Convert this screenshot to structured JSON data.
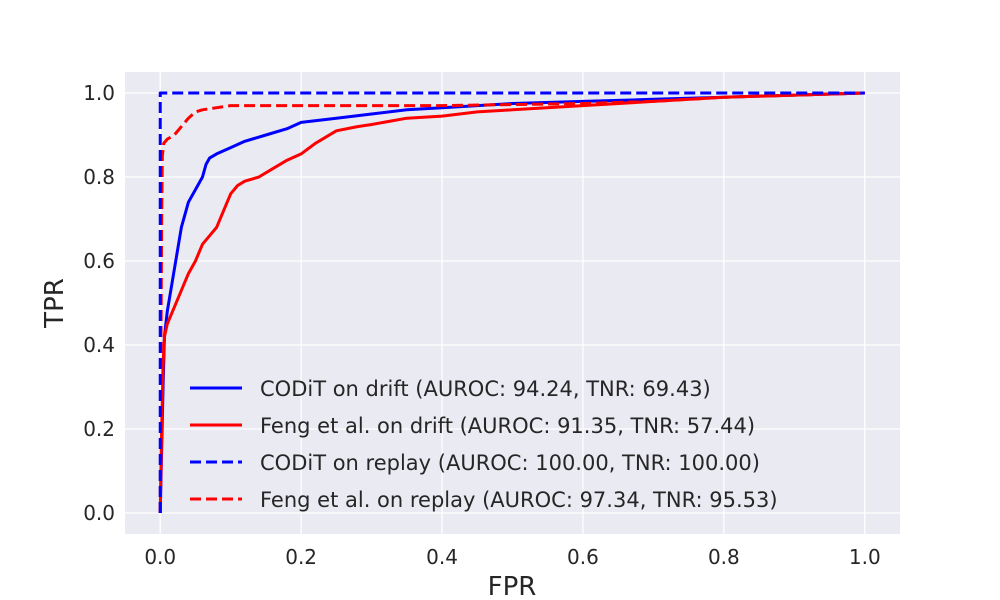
{
  "chart_data": {
    "type": "line",
    "title": "",
    "xlabel": "FPR",
    "ylabel": "TPR",
    "xlim": [
      -0.05,
      1.05
    ],
    "ylim": [
      -0.05,
      1.05
    ],
    "xticks": [
      0.0,
      0.2,
      0.4,
      0.6,
      0.8,
      1.0
    ],
    "yticks": [
      0.0,
      0.2,
      0.4,
      0.6,
      0.8,
      1.0
    ],
    "xtick_labels": [
      "0.0",
      "0.2",
      "0.4",
      "0.6",
      "0.8",
      "1.0"
    ],
    "ytick_labels": [
      "0.0",
      "0.2",
      "0.4",
      "0.6",
      "0.8",
      "1.0"
    ],
    "grid": true,
    "background": "#EAEAF2",
    "legend_position": "lower-right",
    "series": [
      {
        "name": "CODiT on drift (AUROC: 94.24, TNR: 69.43)",
        "color": "#0000FF",
        "style": "solid",
        "x": [
          0.0,
          0.002,
          0.004,
          0.006,
          0.01,
          0.015,
          0.02,
          0.03,
          0.04,
          0.05,
          0.06,
          0.065,
          0.07,
          0.08,
          0.1,
          0.12,
          0.15,
          0.18,
          0.2,
          0.25,
          0.3,
          0.35,
          0.4,
          0.5,
          0.6,
          0.7,
          0.8,
          0.9,
          1.0
        ],
        "y": [
          0.0,
          0.15,
          0.3,
          0.42,
          0.48,
          0.53,
          0.58,
          0.68,
          0.74,
          0.77,
          0.8,
          0.83,
          0.845,
          0.855,
          0.87,
          0.885,
          0.9,
          0.915,
          0.93,
          0.94,
          0.95,
          0.96,
          0.965,
          0.975,
          0.98,
          0.985,
          0.99,
          0.995,
          1.0
        ]
      },
      {
        "name": "Feng et al. on drift (AUROC: 91.35, TNR: 57.44)",
        "color": "#FF0000",
        "style": "solid",
        "x": [
          0.0,
          0.002,
          0.004,
          0.006,
          0.01,
          0.02,
          0.03,
          0.04,
          0.05,
          0.06,
          0.07,
          0.08,
          0.09,
          0.1,
          0.11,
          0.12,
          0.14,
          0.16,
          0.18,
          0.2,
          0.22,
          0.25,
          0.28,
          0.3,
          0.35,
          0.4,
          0.45,
          0.5,
          0.6,
          0.7,
          0.8,
          0.9,
          1.0
        ],
        "y": [
          0.0,
          0.2,
          0.35,
          0.42,
          0.45,
          0.49,
          0.53,
          0.57,
          0.6,
          0.64,
          0.66,
          0.68,
          0.72,
          0.76,
          0.78,
          0.79,
          0.8,
          0.82,
          0.84,
          0.855,
          0.88,
          0.91,
          0.92,
          0.925,
          0.94,
          0.945,
          0.955,
          0.96,
          0.97,
          0.98,
          0.99,
          0.995,
          1.0
        ]
      },
      {
        "name": "CODiT on replay (AUROC: 100.00, TNR: 100.00)",
        "color": "#0000FF",
        "style": "dashed",
        "x": [
          0.0,
          0.0,
          1.0
        ],
        "y": [
          0.0,
          1.0,
          1.0
        ]
      },
      {
        "name": "Feng et al. on replay (AUROC: 97.34, TNR: 95.53)",
        "color": "#FF0000",
        "style": "dashed",
        "x": [
          0.0,
          0.001,
          0.002,
          0.003,
          0.005,
          0.01,
          0.02,
          0.03,
          0.04,
          0.05,
          0.06,
          0.08,
          0.1,
          0.15,
          0.2,
          0.4,
          0.6,
          0.7,
          0.8,
          0.9,
          1.0
        ],
        "y": [
          0.0,
          0.4,
          0.7,
          0.85,
          0.88,
          0.89,
          0.9,
          0.92,
          0.94,
          0.955,
          0.96,
          0.965,
          0.97,
          0.97,
          0.97,
          0.97,
          0.975,
          0.98,
          0.99,
          0.995,
          1.0
        ]
      }
    ]
  }
}
